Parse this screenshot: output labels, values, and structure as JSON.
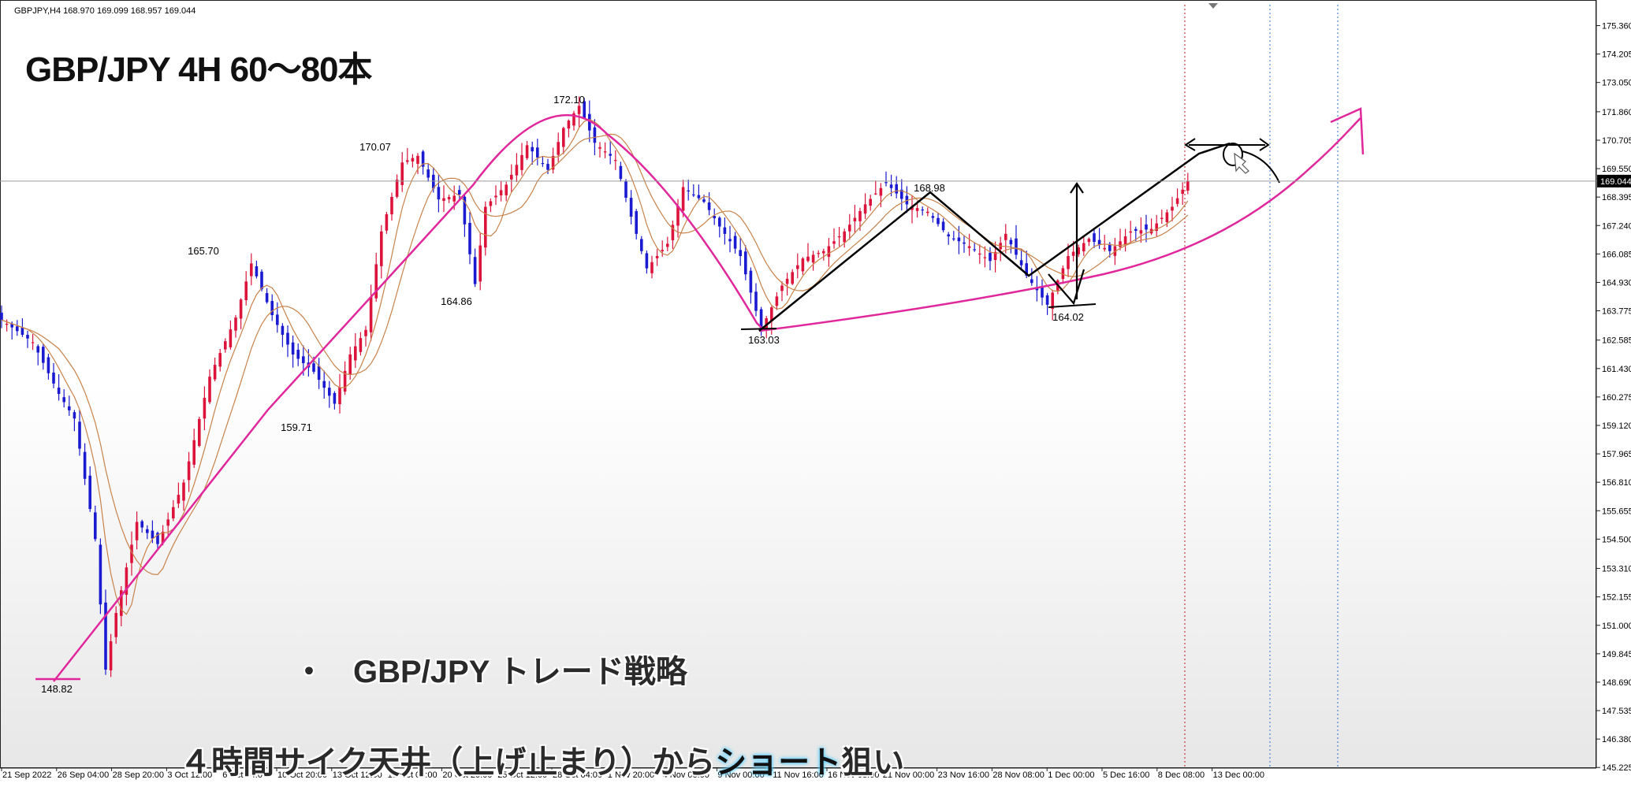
{
  "window": {
    "symbol_info": "GBPJPY,H4  168.970 169.099 168.957 169.044"
  },
  "overlay": {
    "title": "GBP/JPY 4H 60～80本",
    "caption_bullet": "・",
    "caption_line1": "GBP/JPY トレード戦略",
    "caption_line2_pre": "４時間サイク天井（上げ止まり）から",
    "caption_line2_highlight": "ショート",
    "caption_line2_post": "狙い"
  },
  "colors": {
    "background": "#ffffff",
    "bull_candle": "#dc143c",
    "bear_candle": "#1a1ad0",
    "moving_average": "#c8824a",
    "trend_annotation": "#e0289c",
    "pen_annotation": "#000000",
    "current_price_line": "#9a9a9a",
    "price_tag_bg": "#000000",
    "vline_red": "#c0141e",
    "vline_blue": "#2b6fd6"
  },
  "chart_data": {
    "type": "candlestick",
    "title": "GBPJPY,H4",
    "ylim": [
      145.2,
      176.4
    ],
    "y_ticks": [
      "175.360",
      "174.205",
      "173.050",
      "171.860",
      "170.705",
      "169.550",
      "168.395",
      "167.240",
      "166.085",
      "164.930",
      "163.775",
      "162.585",
      "161.430",
      "160.275",
      "159.120",
      "157.965",
      "156.810",
      "155.655",
      "154.500",
      "153.310",
      "152.155",
      "151.000",
      "149.845",
      "148.690",
      "147.535",
      "146.380",
      "145.225"
    ],
    "x_ticks": [
      "21 Sep 2022",
      "26 Sep 04:00",
      "28 Sep 20:00",
      "3 Oct 12:00",
      "6 Oct 04:00",
      "10 Oct 20:00",
      "13 Oct 12:00",
      "18 Oct 04:00",
      "20 Oct 20:00",
      "25 Oct 12:00",
      "28 Oct 04:00",
      "1 Nov 20:00",
      "4 Nov 08:00",
      "9 Nov 00:00",
      "11 Nov 16:00",
      "16 Nov 08:00",
      "21 Nov 00:00",
      "23 Nov 16:00",
      "28 Nov 08:00",
      "1 Dec 00:00",
      "5 Dec 16:00",
      "8 Dec 08:00",
      "13 Dec 00:00"
    ],
    "current_price": "169.044",
    "price_path": [
      [
        0,
        163.4
      ],
      [
        6,
        162.5
      ],
      [
        11,
        160.4
      ],
      [
        14,
        159.4
      ],
      [
        18,
        154.5
      ],
      [
        20,
        149.2
      ],
      [
        22,
        151.5
      ],
      [
        26,
        155.2
      ],
      [
        30,
        154.3
      ],
      [
        35,
        156.8
      ],
      [
        40,
        161.1
      ],
      [
        45,
        163.5
      ],
      [
        48,
        165.7
      ],
      [
        52,
        163.6
      ],
      [
        56,
        162.0
      ],
      [
        60,
        161.3
      ],
      [
        64,
        160.0
      ],
      [
        67,
        162.0
      ],
      [
        70,
        163.0
      ],
      [
        73,
        167.0
      ],
      [
        77,
        169.8
      ],
      [
        80,
        170.07
      ],
      [
        84,
        168.3
      ],
      [
        88,
        168.5
      ],
      [
        91,
        164.86
      ],
      [
        93,
        168.0
      ],
      [
        97,
        168.9
      ],
      [
        101,
        170.5
      ],
      [
        105,
        169.5
      ],
      [
        108,
        171.2
      ],
      [
        111,
        172.1
      ],
      [
        114,
        170.6
      ],
      [
        118,
        169.9
      ],
      [
        121,
        167.6
      ],
      [
        124,
        165.5
      ],
      [
        128,
        166.5
      ],
      [
        131,
        168.8
      ],
      [
        135,
        168.2
      ],
      [
        138,
        167.2
      ],
      [
        142,
        166.0
      ],
      [
        146,
        163.03
      ],
      [
        150,
        164.8
      ],
      [
        154,
        165.9
      ],
      [
        158,
        166.2
      ],
      [
        162,
        167.0
      ],
      [
        166,
        168.1
      ],
      [
        170,
        168.98
      ],
      [
        174,
        168.1
      ],
      [
        178,
        167.8
      ],
      [
        182,
        166.8
      ],
      [
        186,
        166.4
      ],
      [
        190,
        165.8
      ],
      [
        193,
        166.9
      ],
      [
        197,
        165.2
      ],
      [
        201,
        164.02
      ],
      [
        205,
        166.0
      ],
      [
        209,
        166.7
      ],
      [
        213,
        166.2
      ],
      [
        217,
        167.0
      ],
      [
        221,
        167.1
      ],
      [
        225,
        168.0
      ],
      [
        228,
        169.044
      ]
    ],
    "annotations": [
      {
        "label": "148.82",
        "value": 148.82
      },
      {
        "label": "165.70",
        "value": 165.7
      },
      {
        "label": "159.71",
        "value": 159.71
      },
      {
        "label": "170.07",
        "value": 170.07
      },
      {
        "label": "164.86",
        "value": 164.86
      },
      {
        "label": "172.10",
        "value": 172.1
      },
      {
        "label": "163.03",
        "value": 163.03
      },
      {
        "label": "168.98",
        "value": 168.98
      },
      {
        "label": "164.02",
        "value": 164.02
      }
    ],
    "moving_averages": 2,
    "grid": false
  }
}
